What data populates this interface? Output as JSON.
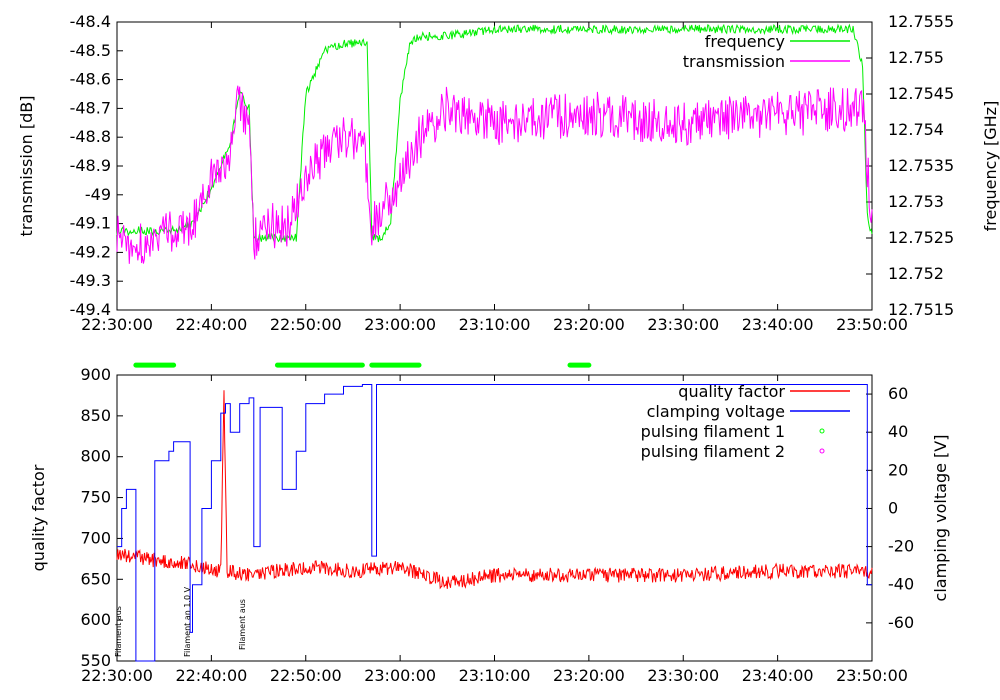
{
  "colors": {
    "frequency": "#00ee00",
    "transmission": "#ff00ff",
    "quality_factor": "#ff0000",
    "clamping_voltage": "#0000ff",
    "pulsing_filament_1": "#00ff00",
    "pulsing_filament_2": "#ff00ff"
  },
  "chart_data": [
    {
      "type": "line",
      "title": "",
      "xlabel": "",
      "ylabel": "transmission [dB]",
      "y2label": "frequency [GHz]",
      "ylim": [
        -49.4,
        -48.4
      ],
      "y2lim": [
        12.7515,
        12.7555
      ],
      "xlim": [
        "22:30:00",
        "23:50:00"
      ],
      "x_ticks": [
        "22:30:00",
        "22:40:00",
        "22:50:00",
        "23:00:00",
        "23:10:00",
        "23:20:00",
        "23:30:00",
        "23:40:00",
        "23:50:00"
      ],
      "y_ticks": [
        "-48.4",
        "-48.5",
        "-48.6",
        "-48.7",
        "-48.8",
        "-48.9",
        "-49",
        "-49.1",
        "-49.2",
        "-49.3",
        "-49.4"
      ],
      "y2_ticks": [
        "12.7555",
        "12.755",
        "12.7545",
        "12.754",
        "12.7535",
        "12.753",
        "12.7525",
        "12.752",
        "12.7515"
      ],
      "legend": [
        "frequency",
        "transmission"
      ],
      "legend_position": "top-right",
      "grid": false,
      "series": [
        {
          "name": "frequency",
          "axis": "right",
          "x": [
            "22:30:00",
            "22:32:00",
            "22:34:00",
            "22:36:00",
            "22:38:00",
            "22:40:00",
            "22:42:00",
            "22:43:00",
            "22:44:00",
            "22:44:30",
            "22:46:00",
            "22:48:00",
            "22:49:00",
            "22:50:00",
            "22:52:00",
            "22:54:00",
            "22:56:00",
            "22:56:30",
            "22:57:00",
            "22:58:00",
            "22:59:00",
            "23:00:00",
            "23:01:00",
            "23:02:00",
            "23:05:00",
            "23:10:00",
            "23:20:00",
            "23:30:00",
            "23:40:00",
            "23:48:00",
            "23:49:00",
            "23:49:30",
            "23:50:00"
          ],
          "values": [
            12.7526,
            12.7526,
            12.7526,
            12.7526,
            12.7527,
            12.7532,
            12.7538,
            12.7545,
            12.7543,
            12.7525,
            12.7525,
            12.7525,
            12.7525,
            12.7545,
            12.7551,
            12.7552,
            12.7552,
            12.7552,
            12.7525,
            12.7525,
            12.7527,
            12.7544,
            12.7552,
            12.7553,
            12.7553,
            12.7554,
            12.7554,
            12.7554,
            12.7554,
            12.7554,
            12.7549,
            12.7528,
            12.7525
          ]
        },
        {
          "name": "transmission",
          "axis": "left",
          "x": [
            "22:30:00",
            "22:32:00",
            "22:34:00",
            "22:36:00",
            "22:38:00",
            "22:40:00",
            "22:42:00",
            "22:43:00",
            "22:44:00",
            "22:44:30",
            "22:46:00",
            "22:48:00",
            "22:50:00",
            "22:52:00",
            "22:54:00",
            "22:56:00",
            "22:57:00",
            "22:58:00",
            "23:00:00",
            "23:02:00",
            "23:05:00",
            "23:10:00",
            "23:20:00",
            "23:30:00",
            "23:40:00",
            "23:49:00",
            "23:50:00"
          ],
          "values": [
            -49.15,
            -49.17,
            -49.16,
            -49.12,
            -49.1,
            -48.95,
            -48.85,
            -48.65,
            -48.8,
            -49.15,
            -49.1,
            -49.12,
            -48.95,
            -48.85,
            -48.8,
            -48.8,
            -49.1,
            -49.05,
            -48.95,
            -48.8,
            -48.7,
            -48.75,
            -48.72,
            -48.75,
            -48.72,
            -48.7,
            -49.1
          ]
        }
      ]
    },
    {
      "type": "line",
      "title": "",
      "xlabel": "",
      "ylabel": "quality factor",
      "y2label": "clamping voltage [V]",
      "ylim": [
        550,
        900
      ],
      "y2lim": [
        -80,
        70
      ],
      "xlim": [
        "22:30:00",
        "23:50:00"
      ],
      "x_ticks": [
        "22:30:00",
        "22:40:00",
        "22:50:00",
        "23:00:00",
        "23:10:00",
        "23:20:00",
        "23:30:00",
        "23:40:00",
        "23:50:00"
      ],
      "y_ticks": [
        "900",
        "850",
        "800",
        "750",
        "700",
        "650",
        "600",
        "550"
      ],
      "y2_ticks": [
        "60",
        "40",
        "20",
        "0",
        "-20",
        "-40",
        "-60"
      ],
      "legend": [
        "quality factor",
        "clamping voltage",
        "pulsing filament 1",
        "pulsing filament 2"
      ],
      "legend_position": "top-right",
      "grid": false,
      "series": [
        {
          "name": "quality factor",
          "axis": "left",
          "x": [
            "22:30:00",
            "22:35:00",
            "22:38:00",
            "22:40:00",
            "22:41:00",
            "22:41:20",
            "22:41:40",
            "22:44:00",
            "22:50:00",
            "22:55:00",
            "23:00:00",
            "23:05:00",
            "23:10:00",
            "23:20:00",
            "23:30:00",
            "23:40:00",
            "23:50:00"
          ],
          "values": [
            680,
            672,
            668,
            662,
            660,
            880,
            660,
            655,
            665,
            660,
            665,
            645,
            655,
            655,
            655,
            660,
            660
          ]
        },
        {
          "name": "clamping voltage",
          "axis": "right",
          "x": [
            "22:30:00",
            "22:30:30",
            "22:31:00",
            "22:31:30",
            "22:32:00",
            "22:32:10",
            "22:32:30",
            "22:33:30",
            "22:34:00",
            "22:35:00",
            "22:35:30",
            "22:36:00",
            "22:37:00",
            "22:37:30",
            "22:37:45",
            "22:38:00",
            "22:39:00",
            "22:40:00",
            "22:41:00",
            "22:41:30",
            "22:41:40",
            "22:42:00",
            "22:43:00",
            "22:44:00",
            "22:44:30",
            "22:45:00",
            "22:45:10",
            "22:46:00",
            "22:47:00",
            "22:47:30",
            "22:48:00",
            "22:49:00",
            "22:50:00",
            "22:52:00",
            "22:54:00",
            "22:56:00",
            "22:56:45",
            "22:57:00",
            "22:57:30",
            "23:00:00",
            "23:10:00",
            "23:20:00",
            "23:30:00",
            "23:40:00",
            "23:49:00",
            "23:49:30",
            "23:50:00"
          ],
          "values": [
            -20,
            0,
            10,
            10,
            -80,
            -80,
            -80,
            -80,
            25,
            25,
            30,
            35,
            35,
            35,
            -65,
            -40,
            0,
            25,
            50,
            55,
            55,
            40,
            55,
            58,
            -20,
            -20,
            53,
            53,
            53,
            10,
            10,
            30,
            55,
            60,
            64,
            65,
            65,
            -25,
            65,
            65,
            65,
            65,
            65,
            65,
            65,
            -40,
            -40
          ]
        },
        {
          "name": "pulsing filament 1",
          "axis": "right",
          "type": "scatter",
          "segments": [
            [
              "22:32:00",
              "22:36:00"
            ],
            [
              "22:47:00",
              "22:56:00"
            ],
            [
              "22:57:00",
              "23:02:00"
            ],
            [
              "23:18:00",
              "23:20:00"
            ]
          ],
          "value": 895
        },
        {
          "name": "pulsing filament 2",
          "axis": "right",
          "type": "scatter",
          "segments": [],
          "value": 895
        }
      ],
      "annotations": [
        "Filament aus",
        "Filament an 1.0 V",
        "Filament aus"
      ]
    }
  ]
}
